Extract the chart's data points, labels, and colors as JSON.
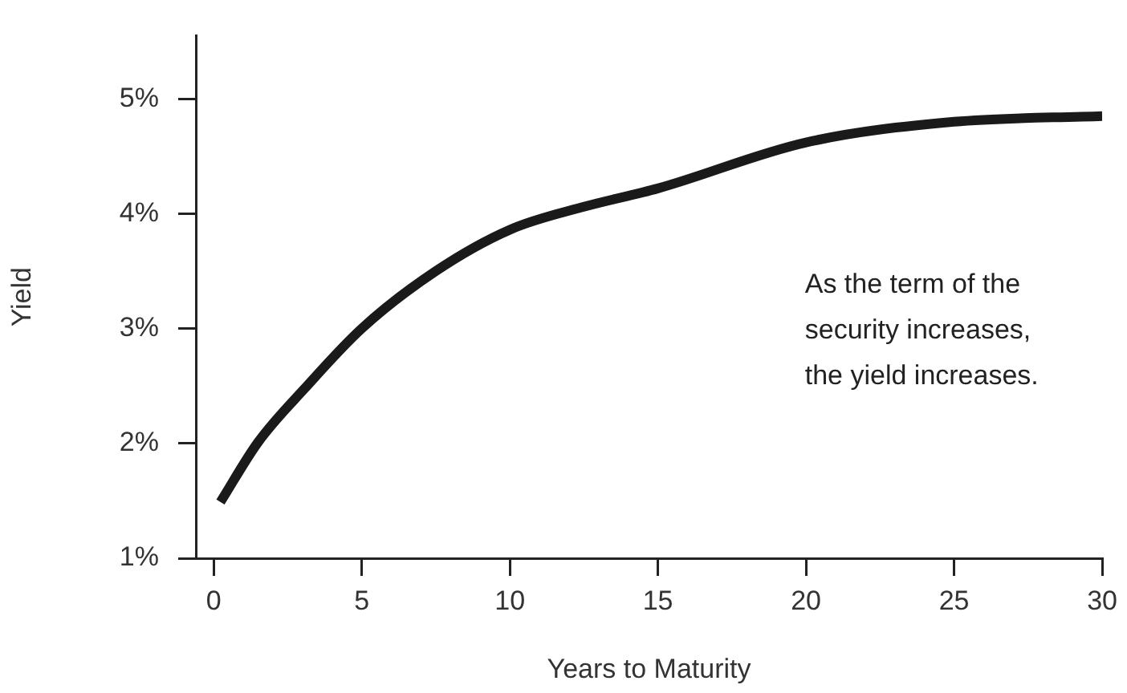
{
  "chart_data": {
    "type": "line",
    "xlabel": "Years to Maturity",
    "ylabel": "Yield",
    "x": [
      0.23,
      1.5,
      3.08,
      5,
      7.5,
      10,
      12.5,
      15,
      20,
      25,
      30
    ],
    "series": [
      {
        "color": "#1a1a1a",
        "values": [
          1.49,
          2.01,
          2.48,
          3.0,
          3.5,
          3.86,
          4.06,
          4.22,
          4.62,
          4.8,
          4.85
        ]
      }
    ],
    "xlim": [
      -0.6,
      30
    ],
    "xticks": [
      0,
      5,
      10,
      15,
      20,
      25,
      30
    ],
    "ylim": [
      1,
      5.55
    ],
    "yticks": [
      {
        "value": 1,
        "label": "1%"
      },
      {
        "value": 2,
        "label": "2%"
      },
      {
        "value": 3,
        "label": "3%"
      },
      {
        "value": 4,
        "label": "4%"
      },
      {
        "value": 5,
        "label": "5%"
      }
    ],
    "annotations": [
      "As the term of the\nsecurity increases,\nthe yield increases."
    ],
    "grid": false,
    "legend": false,
    "marker": "none",
    "line_style": "solid"
  }
}
